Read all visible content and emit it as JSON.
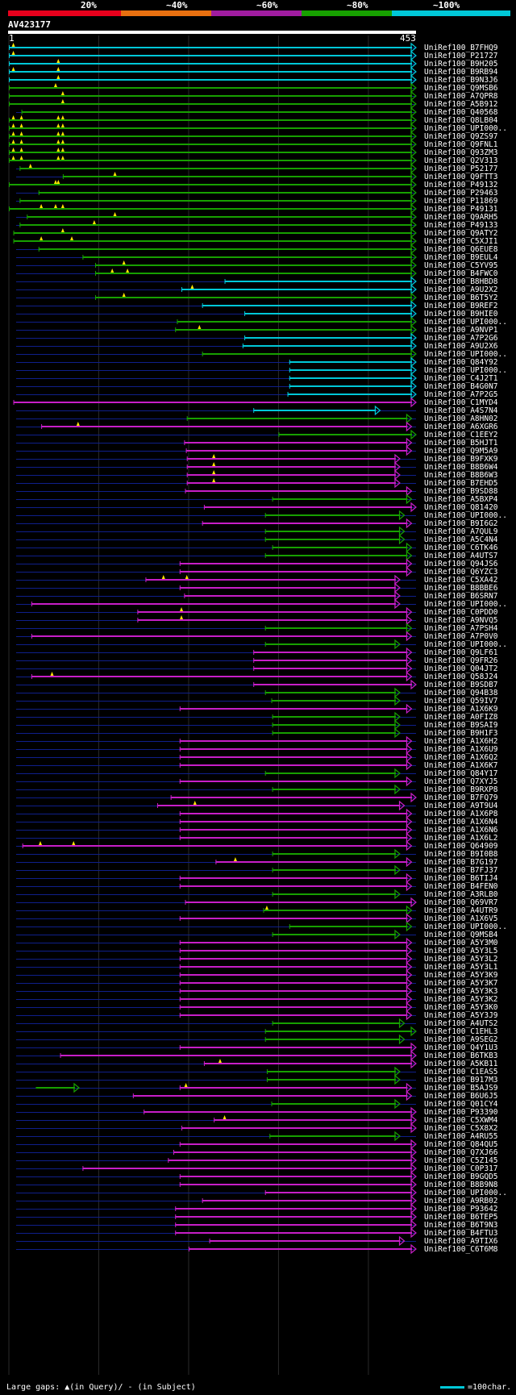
{
  "legend": {
    "labels": [
      "20%",
      "~40%",
      "~60%",
      "~80%",
      "~100%"
    ],
    "colors": [
      "#e8001c",
      "#e87010",
      "#a01ca0",
      "#17a000",
      "#00c8d8"
    ]
  },
  "query": {
    "id": "AV423177",
    "start": "1",
    "end": "453"
  },
  "hit_colors": {
    "cyan": "#00c8d8",
    "green": "#17a000",
    "magenta": "#c71ec7",
    "gap": "#0f1f8a",
    "insert": "#ffe600"
  },
  "hits": [
    {
      "name": "UniRef100_B7FHQ9",
      "color": "cyan",
      "s": 0,
      "e": 453,
      "ins": [
        5
      ]
    },
    {
      "name": "UniRef100_P21727",
      "color": "cyan",
      "s": 0,
      "e": 453,
      "ins": [
        5
      ]
    },
    {
      "name": "UniRef100_B9H205",
      "color": "cyan",
      "s": 0,
      "e": 453,
      "ins": [
        55
      ]
    },
    {
      "name": "UniRef100_B9RB94",
      "color": "cyan",
      "s": 0,
      "e": 453,
      "ins": [
        5,
        55
      ]
    },
    {
      "name": "UniRef100_B9N3J6",
      "color": "cyan",
      "s": 0,
      "e": 453,
      "ins": [
        55
      ]
    },
    {
      "name": "UniRef100_Q9MSB6",
      "color": "green",
      "s": 0,
      "e": 453,
      "ins": [
        52
      ]
    },
    {
      "name": "UniRef100_A7QPR8",
      "color": "green",
      "s": 0,
      "e": 453,
      "ins": [
        60
      ]
    },
    {
      "name": "UniRef100_A5B912",
      "color": "green",
      "s": 0,
      "e": 453,
      "ins": [
        60
      ]
    },
    {
      "name": "UniRef100_Q40568",
      "color": "green",
      "s": 14,
      "e": 453,
      "ins": []
    },
    {
      "name": "UniRef100_Q8LB04",
      "color": "green",
      "s": 0,
      "e": 453,
      "ins": [
        5,
        14,
        55,
        60
      ]
    },
    {
      "name": "UniRef100_UPI000..",
      "color": "green",
      "s": 0,
      "e": 453,
      "ins": [
        5,
        14,
        55,
        60
      ]
    },
    {
      "name": "UniRef100_Q9ZS97",
      "color": "green",
      "s": 0,
      "e": 453,
      "ins": [
        5,
        14,
        55,
        60
      ]
    },
    {
      "name": "UniRef100_Q9FNL1",
      "color": "green",
      "s": 0,
      "e": 453,
      "ins": [
        5,
        14,
        55,
        60
      ]
    },
    {
      "name": "UniRef100_Q93ZM3",
      "color": "green",
      "s": 0,
      "e": 453,
      "ins": [
        5,
        14,
        55,
        60
      ]
    },
    {
      "name": "UniRef100_Q2V313",
      "color": "green",
      "s": 0,
      "e": 453,
      "ins": [
        5,
        14,
        55,
        60
      ]
    },
    {
      "name": "UniRef100_P52177",
      "color": "green",
      "s": 12,
      "e": 453,
      "ins": [
        24
      ]
    },
    {
      "name": "UniRef100_Q9FTT3",
      "color": "green",
      "s": 60,
      "e": 453,
      "ins": [
        118
      ]
    },
    {
      "name": "UniRef100_P49132",
      "color": "green",
      "s": 0,
      "e": 453,
      "ins": [
        52,
        55
      ]
    },
    {
      "name": "UniRef100_P29463",
      "color": "green",
      "s": 33,
      "e": 453,
      "ins": []
    },
    {
      "name": "UniRef100_P11869",
      "color": "green",
      "s": 12,
      "e": 453,
      "ins": []
    },
    {
      "name": "UniRef100_P49131",
      "color": "green",
      "s": 0,
      "e": 453,
      "ins": [
        36,
        52,
        60
      ]
    },
    {
      "name": "UniRef100_Q9ARH5",
      "color": "green",
      "s": 20,
      "e": 453,
      "ins": [
        118
      ]
    },
    {
      "name": "UniRef100_P49133",
      "color": "green",
      "s": 12,
      "e": 453,
      "ins": [
        95
      ]
    },
    {
      "name": "UniRef100_Q9ATY2",
      "color": "green",
      "s": 5,
      "e": 453,
      "ins": [
        60
      ]
    },
    {
      "name": "UniRef100_C5XJI1",
      "color": "green",
      "s": 5,
      "e": 453,
      "ins": [
        36,
        70
      ]
    },
    {
      "name": "UniRef100_Q6EUE8",
      "color": "green",
      "s": 33,
      "e": 453,
      "ins": []
    },
    {
      "name": "UniRef100_B9EUL4",
      "color": "green",
      "s": 82,
      "e": 453,
      "ins": []
    },
    {
      "name": "UniRef100_C5YV95",
      "color": "green",
      "s": 96,
      "e": 453,
      "ins": [
        128
      ]
    },
    {
      "name": "UniRef100_B4FWC0",
      "color": "green",
      "s": 96,
      "e": 453,
      "ins": [
        115,
        132
      ]
    },
    {
      "name": "UniRef100_B8HBD8",
      "color": "cyan",
      "s": 240,
      "e": 453,
      "ins": []
    },
    {
      "name": "UniRef100_A9U2X2",
      "color": "cyan",
      "s": 192,
      "e": 453,
      "ins": [
        204
      ]
    },
    {
      "name": "UniRef100_B6T5Y2",
      "color": "green",
      "s": 96,
      "e": 453,
      "ins": [
        128
      ]
    },
    {
      "name": "UniRef100_B9REF2",
      "color": "cyan",
      "s": 215,
      "e": 453,
      "ins": []
    },
    {
      "name": "UniRef100_B9HIE0",
      "color": "cyan",
      "s": 262,
      "e": 453,
      "ins": []
    },
    {
      "name": "UniRef100_UPI000..",
      "color": "green",
      "s": 187,
      "e": 453,
      "ins": []
    },
    {
      "name": "UniRef100_A9NVP1",
      "color": "green",
      "s": 185,
      "e": 453,
      "ins": [
        212
      ]
    },
    {
      "name": "UniRef100_A7P2G6",
      "color": "cyan",
      "s": 262,
      "e": 453,
      "ins": []
    },
    {
      "name": "UniRef100_A9U2X6",
      "color": "cyan",
      "s": 260,
      "e": 453,
      "ins": []
    },
    {
      "name": "UniRef100_UPI000..",
      "color": "green",
      "s": 215,
      "e": 453,
      "ins": []
    },
    {
      "name": "UniRef100_Q84Y92",
      "color": "cyan",
      "s": 312,
      "e": 453,
      "ins": []
    },
    {
      "name": "UniRef100_UPI000..",
      "color": "cyan",
      "s": 312,
      "e": 453,
      "ins": []
    },
    {
      "name": "UniRef100_C4J2T1",
      "color": "cyan",
      "s": 312,
      "e": 453,
      "ins": []
    },
    {
      "name": "UniRef100_B4G0N7",
      "color": "cyan",
      "s": 312,
      "e": 453,
      "ins": []
    },
    {
      "name": "UniRef100_A7P2G5",
      "color": "cyan",
      "s": 310,
      "e": 453,
      "ins": []
    },
    {
      "name": "UniRef100_C1MYD4",
      "color": "magenta",
      "s": 5,
      "e": 453,
      "ins": []
    },
    {
      "name": "UniRef100_A4S7N4",
      "color": "cyan",
      "s": 272,
      "e": 413,
      "ins": []
    },
    {
      "name": "UniRef100_A8HN02",
      "color": "green",
      "s": 198,
      "e": 448,
      "ins": []
    },
    {
      "name": "UniRef100_A6XGR6",
      "color": "magenta",
      "s": 36,
      "e": 448,
      "ins": [
        77
      ]
    },
    {
      "name": "UniRef100_C1EEY2",
      "color": "green",
      "s": 300,
      "e": 453,
      "ins": []
    },
    {
      "name": "UniRef100_B5HJT1",
      "color": "magenta",
      "s": 195,
      "e": 448,
      "ins": []
    },
    {
      "name": "UniRef100_Q9M5A9",
      "color": "magenta",
      "s": 197,
      "e": 448,
      "ins": []
    },
    {
      "name": "UniRef100_B9FXK9",
      "color": "magenta",
      "s": 198,
      "e": 435,
      "ins": [
        228
      ]
    },
    {
      "name": "UniRef100_B8B6W4",
      "color": "magenta",
      "s": 198,
      "e": 435,
      "ins": [
        228
      ]
    },
    {
      "name": "UniRef100_B8B6W3",
      "color": "magenta",
      "s": 198,
      "e": 435,
      "ins": [
        228
      ]
    },
    {
      "name": "UniRef100_B7EHD5",
      "color": "magenta",
      "s": 198,
      "e": 435,
      "ins": [
        228
      ]
    },
    {
      "name": "UniRef100_B9SD88",
      "color": "magenta",
      "s": 196,
      "e": 448,
      "ins": []
    },
    {
      "name": "UniRef100_A5BXP4",
      "color": "green",
      "s": 293,
      "e": 448,
      "ins": []
    },
    {
      "name": "UniRef100_Q81420",
      "color": "magenta",
      "s": 217,
      "e": 453,
      "ins": []
    },
    {
      "name": "UniRef100_UPI000..",
      "color": "green",
      "s": 285,
      "e": 440,
      "ins": []
    },
    {
      "name": "UniRef100_B9I6G2",
      "color": "magenta",
      "s": 215,
      "e": 448,
      "ins": []
    },
    {
      "name": "UniRef100_A7QUL9",
      "color": "green",
      "s": 285,
      "e": 440,
      "ins": []
    },
    {
      "name": "UniRef100_A5C4N4",
      "color": "green",
      "s": 285,
      "e": 440,
      "ins": []
    },
    {
      "name": "UniRef100_C6TK46",
      "color": "green",
      "s": 293,
      "e": 448,
      "ins": []
    },
    {
      "name": "UniRef100_A4UTS7",
      "color": "green",
      "s": 285,
      "e": 448,
      "ins": []
    },
    {
      "name": "UniRef100_Q94JS6",
      "color": "magenta",
      "s": 190,
      "e": 448,
      "ins": []
    },
    {
      "name": "UniRef100_Q6YZC3",
      "color": "magenta",
      "s": 190,
      "e": 448,
      "ins": []
    },
    {
      "name": "UniRef100_C5XA42",
      "color": "magenta",
      "s": 152,
      "e": 435,
      "ins": [
        172,
        198
      ]
    },
    {
      "name": "UniRef100_B8BBE6",
      "color": "magenta",
      "s": 190,
      "e": 435,
      "ins": []
    },
    {
      "name": "UniRef100_B6SRN7",
      "color": "magenta",
      "s": 195,
      "e": 435,
      "ins": []
    },
    {
      "name": "UniRef100_UPI000..",
      "color": "magenta",
      "s": 25,
      "e": 435,
      "ins": []
    },
    {
      "name": "UniRef100_C0PDD0",
      "color": "magenta",
      "s": 143,
      "e": 448,
      "ins": [
        192
      ]
    },
    {
      "name": "UniRef100_A9NVQ5",
      "color": "magenta",
      "s": 143,
      "e": 448,
      "ins": [
        192
      ]
    },
    {
      "name": "UniRef100_A7PSH4",
      "color": "green",
      "s": 285,
      "e": 448,
      "ins": []
    },
    {
      "name": "UniRef100_A7P0V0",
      "color": "magenta",
      "s": 25,
      "e": 448,
      "ins": []
    },
    {
      "name": "UniRef100_UPI000..",
      "color": "green",
      "s": 285,
      "e": 435,
      "ins": []
    },
    {
      "name": "UniRef100_Q9LF61",
      "color": "magenta",
      "s": 272,
      "e": 448,
      "ins": []
    },
    {
      "name": "UniRef100_Q9FR26",
      "color": "magenta",
      "s": 272,
      "e": 448,
      "ins": []
    },
    {
      "name": "UniRef100_Q04JT2",
      "color": "magenta",
      "s": 272,
      "e": 448,
      "ins": []
    },
    {
      "name": "UniRef100_Q58J24",
      "color": "magenta",
      "s": 25,
      "e": 448,
      "ins": [
        48
      ]
    },
    {
      "name": "UniRef100_B9SDB7",
      "color": "magenta",
      "s": 272,
      "e": 453,
      "ins": []
    },
    {
      "name": "UniRef100_Q94B38",
      "color": "green",
      "s": 285,
      "e": 435,
      "ins": []
    },
    {
      "name": "UniRef100_Q59IV7",
      "color": "green",
      "s": 292,
      "e": 435,
      "ins": []
    },
    {
      "name": "UniRef100_A1X6K9",
      "color": "magenta",
      "s": 190,
      "e": 448,
      "ins": []
    },
    {
      "name": "UniRef100_A0FIZ8",
      "color": "green",
      "s": 293,
      "e": 435,
      "ins": []
    },
    {
      "name": "UniRef100_B9SAI9",
      "color": "green",
      "s": 293,
      "e": 435,
      "ins": []
    },
    {
      "name": "UniRef100_B9H1F3",
      "color": "green",
      "s": 293,
      "e": 435,
      "ins": []
    },
    {
      "name": "UniRef100_A1X6H2",
      "color": "magenta",
      "s": 190,
      "e": 448,
      "ins": []
    },
    {
      "name": "UniRef100_A1X6U9",
      "color": "magenta",
      "s": 190,
      "e": 448,
      "ins": []
    },
    {
      "name": "UniRef100_A1X6Q2",
      "color": "magenta",
      "s": 190,
      "e": 448,
      "ins": []
    },
    {
      "name": "UniRef100_A1X6K7",
      "color": "magenta",
      "s": 190,
      "e": 448,
      "ins": []
    },
    {
      "name": "UniRef100_Q84Y17",
      "color": "green",
      "s": 285,
      "e": 435,
      "ins": []
    },
    {
      "name": "UniRef100_Q7XYJ5",
      "color": "magenta",
      "s": 190,
      "e": 448,
      "ins": []
    },
    {
      "name": "UniRef100_B9RXP8",
      "color": "green",
      "s": 293,
      "e": 435,
      "ins": []
    },
    {
      "name": "UniRef100_B7FQ79",
      "color": "magenta",
      "s": 180,
      "e": 453,
      "ins": []
    },
    {
      "name": "UniRef100_A9T9U4",
      "color": "magenta",
      "s": 165,
      "e": 440,
      "ins": [
        207
      ]
    },
    {
      "name": "UniRef100_A1X6P8",
      "color": "magenta",
      "s": 190,
      "e": 448,
      "ins": []
    },
    {
      "name": "UniRef100_A1X6N4",
      "color": "magenta",
      "s": 190,
      "e": 448,
      "ins": []
    },
    {
      "name": "UniRef100_A1X6N6",
      "color": "magenta",
      "s": 190,
      "e": 448,
      "ins": []
    },
    {
      "name": "UniRef100_A1X6L2",
      "color": "magenta",
      "s": 190,
      "e": 448,
      "ins": []
    },
    {
      "name": "UniRef100_Q64909",
      "color": "magenta",
      "s": 15,
      "e": 448,
      "ins": [
        35,
        72
      ]
    },
    {
      "name": "UniRef100_B9I0B8",
      "color": "green",
      "s": 293,
      "e": 435,
      "ins": []
    },
    {
      "name": "UniRef100_B7G197",
      "color": "magenta",
      "s": 230,
      "e": 448,
      "ins": [
        252
      ]
    },
    {
      "name": "UniRef100_B7FJ37",
      "color": "green",
      "s": 293,
      "e": 435,
      "ins": []
    },
    {
      "name": "UniRef100_B6TIJ4",
      "color": "magenta",
      "s": 190,
      "e": 448,
      "ins": []
    },
    {
      "name": "UniRef100_B4FEN0",
      "color": "magenta",
      "s": 190,
      "e": 448,
      "ins": []
    },
    {
      "name": "UniRef100_A3RLB0",
      "color": "green",
      "s": 293,
      "e": 435,
      "ins": []
    },
    {
      "name": "UniRef100_Q69VR7",
      "color": "magenta",
      "s": 196,
      "e": 453,
      "ins": []
    },
    {
      "name": "UniRef100_A4UTR9",
      "color": "green",
      "s": 283,
      "e": 448,
      "ins": [
        287
      ]
    },
    {
      "name": "UniRef100_A1X6V5",
      "color": "magenta",
      "s": 190,
      "e": 448,
      "ins": []
    },
    {
      "name": "UniRef100_UPI000..",
      "color": "green",
      "s": 312,
      "e": 448,
      "ins": []
    },
    {
      "name": "UniRef100_Q9MSB4",
      "color": "green",
      "s": 293,
      "e": 435,
      "ins": []
    },
    {
      "name": "UniRef100_A5Y3M0",
      "color": "magenta",
      "s": 190,
      "e": 448,
      "ins": []
    },
    {
      "name": "UniRef100_A5Y3L5",
      "color": "magenta",
      "s": 190,
      "e": 448,
      "ins": []
    },
    {
      "name": "UniRef100_A5Y3L2",
      "color": "magenta",
      "s": 190,
      "e": 448,
      "ins": []
    },
    {
      "name": "UniRef100_A5Y3L1",
      "color": "magenta",
      "s": 190,
      "e": 448,
      "ins": []
    },
    {
      "name": "UniRef100_A5Y3K9",
      "color": "magenta",
      "s": 190,
      "e": 448,
      "ins": []
    },
    {
      "name": "UniRef100_A5Y3K7",
      "color": "magenta",
      "s": 190,
      "e": 448,
      "ins": []
    },
    {
      "name": "UniRef100_A5Y3K3",
      "color": "magenta",
      "s": 190,
      "e": 448,
      "ins": []
    },
    {
      "name": "UniRef100_A5Y3K2",
      "color": "magenta",
      "s": 190,
      "e": 448,
      "ins": []
    },
    {
      "name": "UniRef100_A5Y3K0",
      "color": "magenta",
      "s": 190,
      "e": 448,
      "ins": []
    },
    {
      "name": "UniRef100_A5Y3J9",
      "color": "magenta",
      "s": 190,
      "e": 448,
      "ins": []
    },
    {
      "name": "UniRef100_A4UTS2",
      "color": "green",
      "s": 293,
      "e": 440,
      "ins": []
    },
    {
      "name": "UniRef100_C1EHL3",
      "color": "green",
      "s": 285,
      "e": 453,
      "ins": []
    },
    {
      "name": "UniRef100_A9SEG2",
      "color": "green",
      "s": 285,
      "e": 440,
      "ins": []
    },
    {
      "name": "UniRef100_Q4Y1U3",
      "color": "magenta",
      "s": 190,
      "e": 453,
      "ins": []
    },
    {
      "name": "UniRef100_B6TKB3",
      "color": "magenta",
      "s": 57,
      "e": 453,
      "ins": []
    },
    {
      "name": "UniRef100_A5KB11",
      "color": "magenta",
      "s": 217,
      "e": 453,
      "ins": [
        235
      ]
    },
    {
      "name": "UniRef100_C1EAS5",
      "color": "green",
      "s": 287,
      "e": 435,
      "ins": []
    },
    {
      "name": "UniRef100_B917M3",
      "color": "green",
      "s": 287,
      "e": 435,
      "ins": []
    },
    {
      "name": "UniRef100_B5AJS9",
      "color": "magenta",
      "s": 190,
      "e": 448,
      "ins": [
        197
      ]
    },
    {
      "name": "UniRef100_B6U6J5",
      "color": "magenta",
      "s": 138,
      "e": 448,
      "ins": []
    },
    {
      "name": "UniRef100_Q01CY4",
      "color": "green",
      "s": 292,
      "e": 435,
      "ins": []
    },
    {
      "name": "UniRef100_P93390",
      "color": "magenta",
      "s": 150,
      "e": 453,
      "ins": []
    },
    {
      "name": "UniRef100_C5XWM4",
      "color": "magenta",
      "s": 228,
      "e": 453,
      "ins": [
        240
      ]
    },
    {
      "name": "UniRef100_C5X8X2",
      "color": "magenta",
      "s": 192,
      "e": 453,
      "ins": []
    },
    {
      "name": "UniRef100_A4RU55",
      "color": "green",
      "s": 290,
      "e": 435,
      "ins": []
    },
    {
      "name": "UniRef100_Q84QU5",
      "color": "magenta",
      "s": 190,
      "e": 453,
      "ins": []
    },
    {
      "name": "UniRef100_Q7XJ66",
      "color": "magenta",
      "s": 183,
      "e": 453,
      "ins": []
    },
    {
      "name": "UniRef100_C5Z145",
      "color": "magenta",
      "s": 177,
      "e": 453,
      "ins": []
    },
    {
      "name": "UniRef100_C0P317",
      "color": "magenta",
      "s": 82,
      "e": 453,
      "ins": []
    },
    {
      "name": "UniRef100_B9GQD5",
      "color": "magenta",
      "s": 190,
      "e": 453,
      "ins": []
    },
    {
      "name": "UniRef100_B8B9N8",
      "color": "magenta",
      "s": 190,
      "e": 453,
      "ins": []
    },
    {
      "name": "UniRef100_UPI000..",
      "color": "magenta",
      "s": 285,
      "e": 453,
      "ins": []
    },
    {
      "name": "UniRef100_A9RB02",
      "color": "magenta",
      "s": 215,
      "e": 453,
      "ins": []
    },
    {
      "name": "UniRef100_P93642",
      "color": "magenta",
      "s": 185,
      "e": 453,
      "ins": []
    },
    {
      "name": "UniRef100_B6TEP5",
      "color": "magenta",
      "s": 185,
      "e": 453,
      "ins": []
    },
    {
      "name": "UniRef100_B6T9N3",
      "color": "magenta",
      "s": 185,
      "e": 453,
      "ins": []
    },
    {
      "name": "UniRef100_B4FTU3",
      "color": "magenta",
      "s": 185,
      "e": 453,
      "ins": []
    },
    {
      "name": "UniRef100_A9TIX6",
      "color": "magenta",
      "s": 223,
      "e": 440,
      "ins": []
    },
    {
      "name": "UniRef100_C6T6M8",
      "color": "magenta",
      "s": 200,
      "e": 453,
      "ins": []
    }
  ],
  "extra_segment": {
    "color": "green",
    "s": 30,
    "e": 78,
    "row": 129
  },
  "footer": {
    "left": "Large gaps: ▲(in Query)/ - (in Subject)",
    "right": "=100char."
  }
}
